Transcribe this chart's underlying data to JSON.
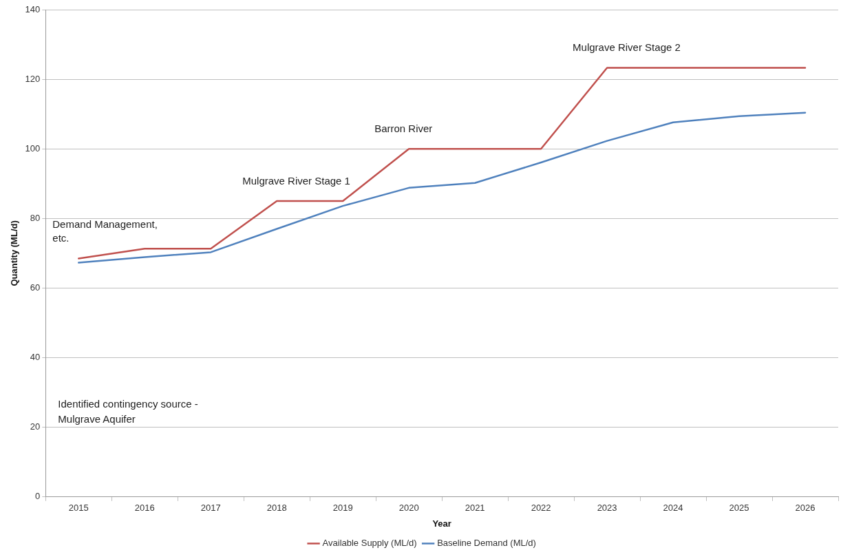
{
  "chart_data": {
    "type": "line",
    "xlabel": "Year",
    "ylabel": "Quantity (ML/d)",
    "categories": [
      "2015",
      "2016",
      "2017",
      "2018",
      "2019",
      "2020",
      "2021",
      "2022",
      "2023",
      "2024",
      "2025",
      "2026"
    ],
    "series": [
      {
        "name": "Available Supply (ML/d)",
        "color": "#c0504d",
        "values": [
          68.5,
          71.3,
          71.3,
          85,
          85,
          100,
          100,
          100,
          123.3,
          123.3,
          123.3,
          123.3
        ]
      },
      {
        "name": "Baseline Demand (ML/d)",
        "color": "#4f81bd",
        "values": [
          67.3,
          68.9,
          70.3,
          77,
          83.6,
          88.8,
          90.2,
          96.1,
          102.3,
          107.6,
          109.4,
          110.4
        ]
      }
    ],
    "ylim": [
      0,
      140
    ],
    "yticks": [
      0,
      20,
      40,
      60,
      80,
      100,
      120,
      140
    ],
    "grid": "y",
    "legend": "bottom",
    "marker": "none",
    "line_style": "solid",
    "annotations": [
      {
        "text": "Demand Management, etc.",
        "x": "2015",
        "y": 68.5
      },
      {
        "text": "Mulgrave River Stage 1",
        "x": "2018",
        "y": 85
      },
      {
        "text": "Barron River",
        "x": "2020",
        "y": 100
      },
      {
        "text": "Mulgrave River Stage 2",
        "x": "2023",
        "y": 123.3
      },
      "Identified contingency source - Mulgrave Aquifer"
    ]
  }
}
